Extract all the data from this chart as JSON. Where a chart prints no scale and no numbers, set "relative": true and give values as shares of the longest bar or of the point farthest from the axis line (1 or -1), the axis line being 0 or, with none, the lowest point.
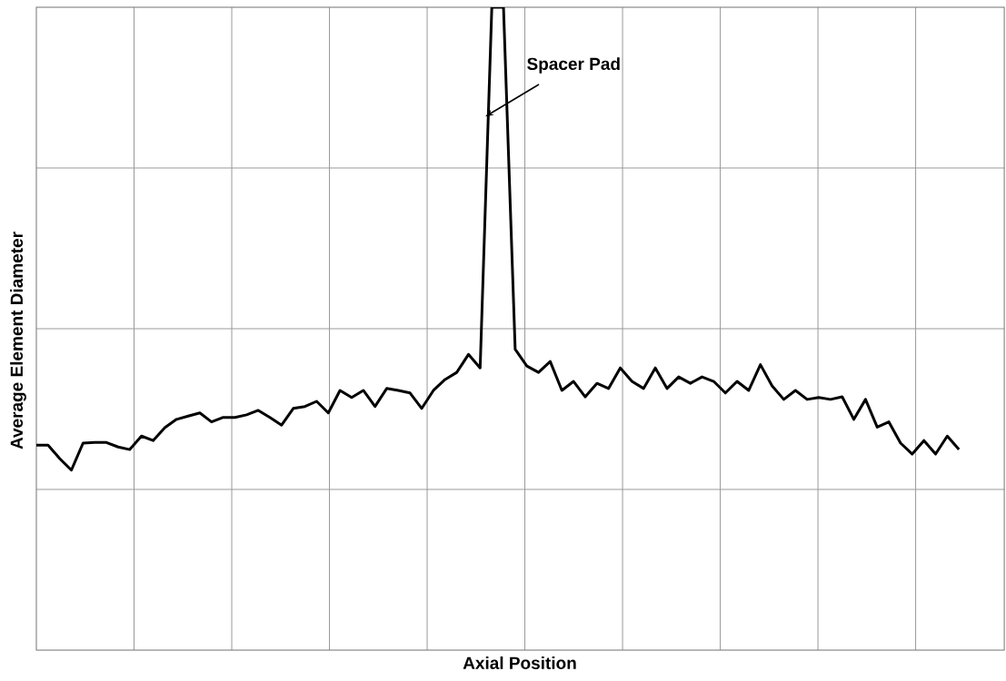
{
  "chart_data": {
    "type": "line",
    "relative": true,
    "xlabel": "Axial Position",
    "ylabel": "Average Element Diameter",
    "annotations": [
      "Spacer Pad"
    ],
    "grid": true,
    "tick_labels": false,
    "marker": "none",
    "line_style": "solid",
    "categories": [
      null,
      null,
      null,
      null,
      null,
      null,
      null,
      null,
      null,
      null,
      null,
      null,
      null,
      null,
      null,
      null,
      null,
      null,
      null,
      null,
      null,
      null,
      null,
      null,
      null,
      null,
      null,
      null,
      null,
      null,
      null,
      null,
      null,
      null,
      null,
      null,
      null,
      null,
      null,
      null,
      null,
      null,
      null,
      null,
      null,
      null,
      null,
      null,
      null,
      null,
      null,
      null,
      null,
      null,
      null,
      null,
      null,
      null,
      null,
      null,
      null,
      null,
      null,
      null,
      null,
      null,
      null,
      null,
      null,
      null,
      null,
      null,
      null,
      null,
      null,
      null,
      null,
      null,
      null,
      null
    ],
    "series": [
      {
        "color": "#000000",
        "values": [
          0.319,
          0.319,
          0.298,
          0.28,
          0.322,
          0.323,
          0.323,
          0.316,
          0.312,
          0.333,
          0.326,
          0.346,
          0.359,
          0.364,
          0.369,
          0.355,
          0.362,
          0.362,
          0.366,
          0.373,
          0.362,
          0.35,
          0.376,
          0.379,
          0.387,
          0.369,
          0.404,
          0.393,
          0.404,
          0.379,
          0.407,
          0.404,
          0.4,
          0.376,
          0.404,
          0.421,
          0.432,
          0.46,
          0.439,
          1,
          1,
          0.468,
          0.442,
          0.432,
          0.449,
          0.404,
          0.418,
          0.394,
          0.415,
          0.407,
          0.439,
          0.418,
          0.407,
          0.439,
          0.407,
          0.425,
          0.415,
          0.425,
          0.418,
          0.4,
          0.418,
          0.404,
          0.444,
          0.411,
          0.39,
          0.404,
          0.39,
          0.393,
          0.39,
          0.394,
          0.359,
          0.39,
          0.347,
          0.355,
          0.322,
          0.305,
          0.326,
          0.305,
          0.333,
          0.312
        ]
      }
    ]
  }
}
